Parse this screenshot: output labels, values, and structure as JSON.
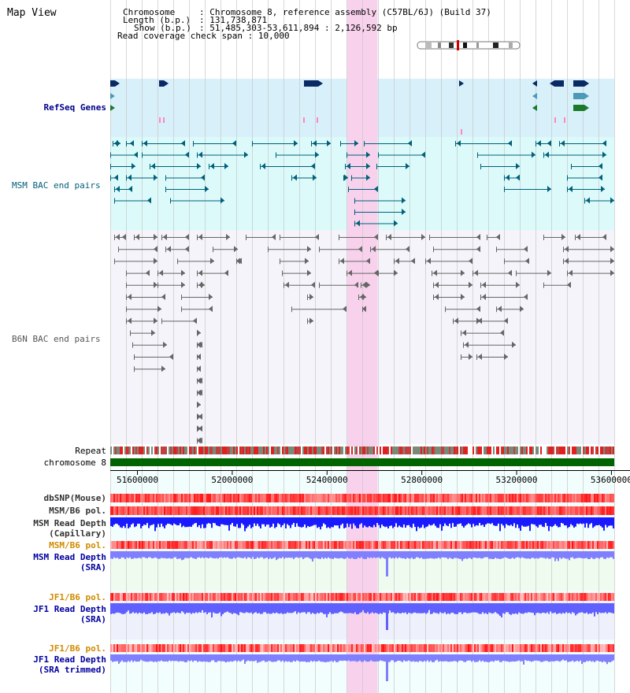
{
  "title": "Map View",
  "info": {
    "chromosome_label": "Chromosome",
    "chromosome_value": "Chromosome 8, reference assembly (C57BL/6J) (Build 37)",
    "length_label": "Length (b.p.)",
    "length_value": "131,738,871",
    "show_label": "Show (b.p.)",
    "show_value": "51,485,303-53,611,894 : 2,126,592 bp",
    "coverage_label": "Read coverage check span",
    "coverage_value": "10,000"
  },
  "tracks": {
    "refseq": "RefSeq Genes",
    "msm_bac": "MSM BAC end pairs",
    "b6n_bac": "B6N BAC end pairs",
    "repeat": "Repeat",
    "chromosome": "chromosome 8",
    "dbsnp": "dbSNP(Mouse)",
    "msm_b6_pol1": "MSM/B6 pol.",
    "msm_depth_cap_1": "MSM Read Depth",
    "msm_depth_cap_2": "(Capillary)",
    "msm_b6_pol2": "MSM/B6 pol.",
    "msm_depth_sra_1": "MSM Read Depth",
    "msm_depth_sra_2": "(SRA)",
    "jf1_b6_pol1": "JF1/B6 pol.",
    "jf1_depth_sra_1": "JF1 Read Depth",
    "jf1_depth_sra_2": "(SRA)",
    "jf1_b6_pol2": "JF1/B6 pol.",
    "jf1_depth_trim_1": "JF1 Read Depth",
    "jf1_depth_trim_2": "(SRA trimmed)"
  },
  "axis": {
    "ticks": [
      "51600000",
      "52000000",
      "52400000",
      "52800000",
      "53200000",
      "53600000"
    ],
    "tick_values": [
      51600000,
      52000000,
      52400000,
      52800000,
      53200000,
      53600000
    ],
    "start": 51485303,
    "end": 53611894
  },
  "highlight": {
    "start": 52485000,
    "end": 52613000,
    "color": "#f8d2ec"
  },
  "colors": {
    "refseq_bg": "#d8f0fa",
    "msm_bg": "#dcfafa",
    "b6n_bg": "#f4f4fa",
    "chromosome": "#006400",
    "snp": "#ff4040",
    "depth_cap": "#1a1aff",
    "depth_sra": "#8080ff",
    "grid": "#c8c8c8",
    "label_navy": "#00008b",
    "label_teal": "#00607a",
    "label_orange": "#d08a00"
  }
}
